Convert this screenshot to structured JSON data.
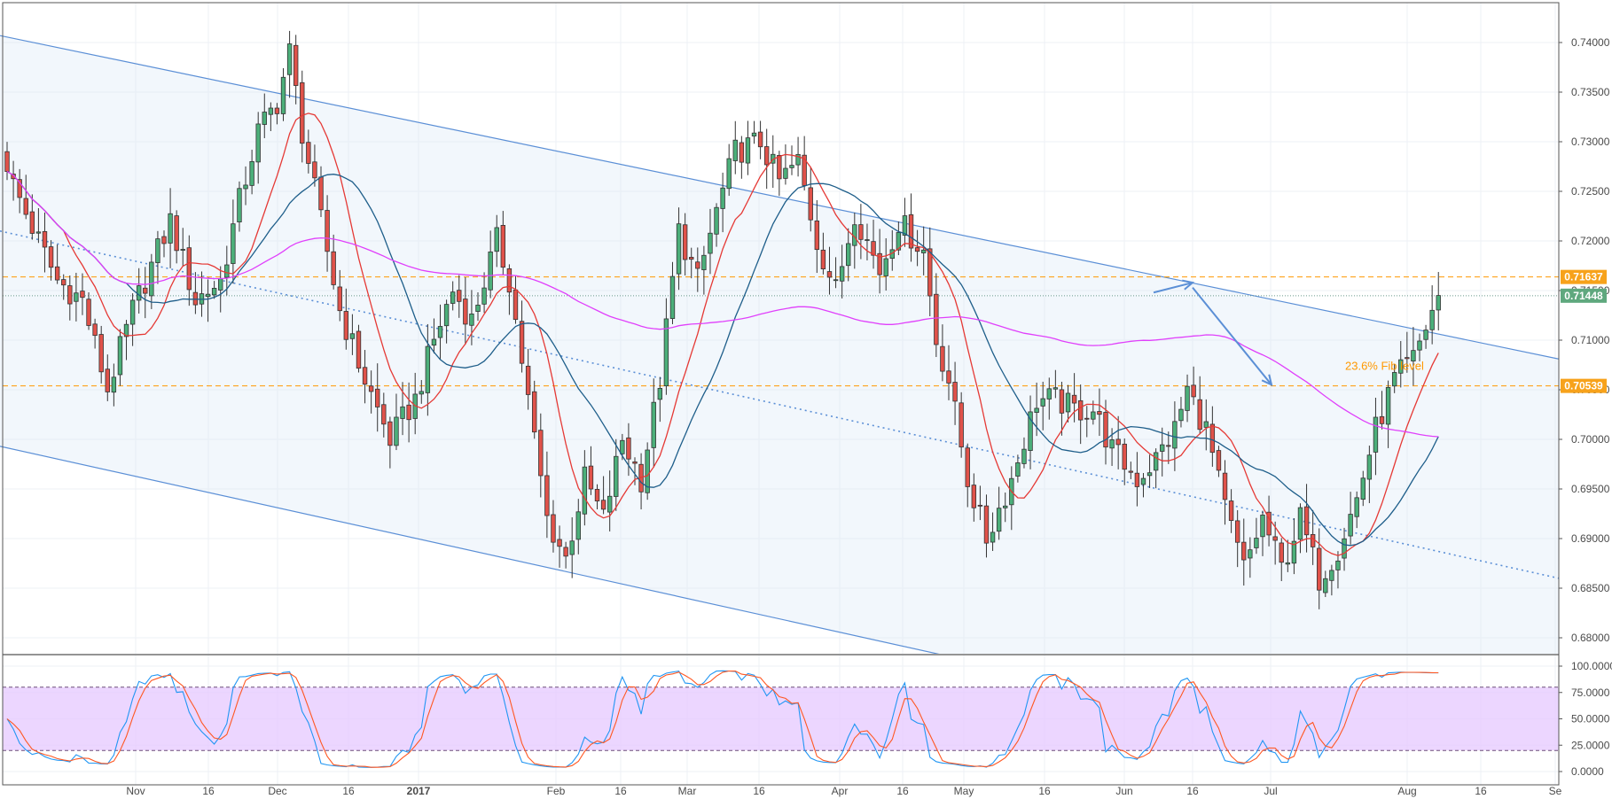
{
  "chart_data": [
    {
      "type": "candlestick",
      "title": "",
      "xlabel": "",
      "ylabel": "",
      "ylim": [
        0.6785,
        0.7415
      ],
      "y_ticks": [
        "0.74000",
        "0.73500",
        "0.73000",
        "0.72500",
        "0.72000",
        "0.71500",
        "0.71000",
        "0.70500",
        "0.70000",
        "0.69500",
        "0.69000",
        "0.68500",
        "0.68000"
      ],
      "x_ticks": [
        "Nov",
        "16",
        "Dec",
        "16",
        "2017",
        "Feb",
        "16",
        "Mar",
        "16",
        "Apr",
        "16",
        "May",
        "16",
        "Jun",
        "16",
        "Jul",
        "Aug",
        "16",
        "Se"
      ],
      "grid": true,
      "up_color": "#4caf7a",
      "down_color": "#e0524a",
      "anchors": [
        [
          0,
          0.727
        ],
        [
          5,
          0.72
        ],
        [
          8,
          0.716
        ],
        [
          12,
          0.714
        ],
        [
          16,
          0.705
        ],
        [
          20,
          0.713
        ],
        [
          22,
          0.716
        ],
        [
          26,
          0.722
        ],
        [
          30,
          0.714
        ],
        [
          34,
          0.716
        ],
        [
          37,
          0.724
        ],
        [
          40,
          0.731
        ],
        [
          43,
          0.734
        ],
        [
          45,
          0.739
        ],
        [
          47,
          0.731
        ],
        [
          50,
          0.722
        ],
        [
          53,
          0.713
        ],
        [
          57,
          0.706
        ],
        [
          61,
          0.7
        ],
        [
          65,
          0.704
        ],
        [
          68,
          0.71
        ],
        [
          71,
          0.715
        ],
        [
          74,
          0.712
        ],
        [
          78,
          0.72
        ],
        [
          80,
          0.716
        ],
        [
          83,
          0.704
        ],
        [
          86,
          0.692
        ],
        [
          89,
          0.688
        ],
        [
          92,
          0.696
        ],
        [
          95,
          0.692
        ],
        [
          98,
          0.7
        ],
        [
          101,
          0.696
        ],
        [
          104,
          0.706
        ],
        [
          107,
          0.721
        ],
        [
          110,
          0.716
        ],
        [
          113,
          0.723
        ],
        [
          116,
          0.729
        ],
        [
          120,
          0.73
        ],
        [
          123,
          0.726
        ],
        [
          126,
          0.728
        ],
        [
          129,
          0.72
        ],
        [
          132,
          0.715
        ],
        [
          135,
          0.723
        ],
        [
          139,
          0.717
        ],
        [
          142,
          0.722
        ],
        [
          146,
          0.719
        ],
        [
          148,
          0.71
        ],
        [
          150,
          0.706
        ],
        [
          153,
          0.696
        ],
        [
          156,
          0.69
        ],
        [
          160,
          0.696
        ],
        [
          164,
          0.704
        ],
        [
          167,
          0.704
        ],
        [
          170,
          0.703
        ],
        [
          173,
          0.703
        ],
        [
          176,
          0.699
        ],
        [
          180,
          0.696
        ],
        [
          183,
          0.698
        ],
        [
          186,
          0.701
        ],
        [
          188,
          0.705
        ],
        [
          191,
          0.701
        ],
        [
          194,
          0.693
        ],
        [
          197,
          0.687
        ],
        [
          200,
          0.692
        ],
        [
          203,
          0.687
        ],
        [
          206,
          0.692
        ],
        [
          209,
          0.686
        ],
        [
          212,
          0.689
        ],
        [
          215,
          0.694
        ],
        [
          218,
          0.701
        ],
        [
          221,
          0.706
        ],
        [
          224,
          0.708
        ],
        [
          227,
          0.713
        ],
        [
          228,
          0.7145
        ]
      ],
      "series": [
        {
          "name": "",
          "color": "#e53935",
          "period": 10
        },
        {
          "name": "",
          "color": "#1e5e8a",
          "period": 20
        },
        {
          "name": "",
          "color": "#e040fb",
          "period": 90
        }
      ],
      "horizontal_levels": [
        {
          "value": 0.71637,
          "label": "0.71637",
          "color": "#ff9800"
        },
        {
          "value": 0.70539,
          "label": "0.70539",
          "color": "#ff9800"
        }
      ],
      "last_price": {
        "value": 0.71448,
        "label": "0.71448",
        "color": "#4caf7a"
      },
      "annotations": [
        {
          "text": "23.6% Fib level",
          "x": "Jun 16",
          "y": 0.7061,
          "color": "#ff9800"
        }
      ],
      "channel": {
        "upper": [
          [
            "Oct 7",
            0.7407
          ],
          [
            "Sep",
            0.7081
          ]
        ],
        "lower": [
          [
            "Oct 7",
            0.6993
          ],
          [
            "Apr 25",
            0.679
          ]
        ],
        "mid_dotted": [
          [
            "Oct 7",
            0.721
          ],
          [
            "Sep",
            0.686
          ]
        ],
        "color": "#5b8fd6"
      },
      "projection_arrows": [
        {
          "from": [
            "Jun 4",
            0.7148
          ],
          "to": [
            "Jun 13",
            0.7158
          ]
        },
        {
          "from": [
            "Jun 13",
            0.7153
          ],
          "to": [
            "Jun 30",
            0.7055
          ]
        }
      ]
    },
    {
      "type": "line",
      "title": "",
      "xlabel": "",
      "ylabel": "",
      "ylim": [
        -4,
        105
      ],
      "y_ticks": [
        "100.0000",
        "75.0000",
        "50.0000",
        "25.0000",
        "0.0000"
      ],
      "band": [
        20,
        80
      ],
      "band_color": "#e6c8ff",
      "series": [
        {
          "name": "",
          "color": "#2196f3",
          "role": "k"
        },
        {
          "name": "",
          "color": "#ff5722",
          "role": "d"
        }
      ]
    }
  ]
}
